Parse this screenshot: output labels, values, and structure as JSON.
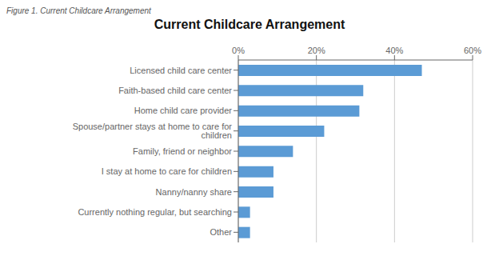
{
  "chart_data": {
    "type": "bar",
    "title": "Current Childcare Arrangement",
    "annotations": [
      "Figure 1. Current Childcare Arrangement"
    ],
    "orientation": "horizontal",
    "categories": [
      "Other",
      "Currently nothing regular, but searching",
      "Nanny/nanny share",
      "I stay at home to care for children",
      "Family, friend or neighbor",
      "Spouse/partner stays at home to care for children",
      "Home child care provider",
      "Faith-based child care center",
      "Licensed child care center"
    ],
    "values": [
      3,
      3,
      9,
      9,
      14,
      22,
      31,
      32,
      47
    ],
    "color": "#5B9BD5",
    "xlim": [
      0,
      60
    ],
    "xticks": [
      {
        "value": 0,
        "label": "0%"
      },
      {
        "value": 20,
        "label": "20%"
      },
      {
        "value": 40,
        "label": "40%"
      },
      {
        "value": 60,
        "label": "60%"
      }
    ],
    "grid": true
  }
}
